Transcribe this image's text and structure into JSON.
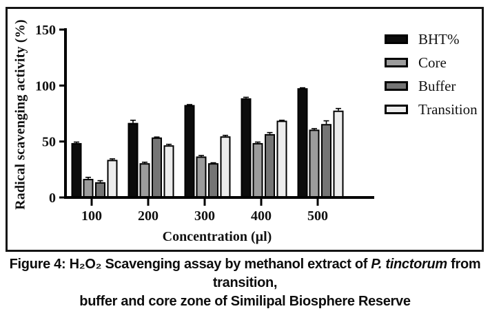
{
  "figure": {
    "caption": {
      "line1_pre": "Figure 4: H₂O₂ Scavenging assay by methanol extract of ",
      "species": "P. tinctorum",
      "line1_post": " from transition,",
      "line2": "buffer and core zone of Similipal Biosphere Reserve"
    }
  },
  "chart_data": {
    "type": "bar",
    "title": "",
    "xlabel": "Concentration (µl)",
    "ylabel": "Radical scavenging activity (%)",
    "ylim": [
      0,
      150
    ],
    "yticks": [
      0,
      50,
      100,
      150
    ],
    "grid": false,
    "legend_position": "right",
    "error_bars": "upper",
    "categories": [
      "100",
      "200",
      "300",
      "400",
      "500"
    ],
    "series": [
      {
        "name": "BHT%",
        "color": "#0c0c0c",
        "values": [
          48,
          66,
          82,
          88,
          97
        ],
        "errors": [
          1.5,
          3,
          1,
          1.5,
          1
        ]
      },
      {
        "name": "Core",
        "color": "#9c9c9c",
        "values": [
          16,
          30,
          36,
          48,
          60
        ],
        "errors": [
          2,
          1.5,
          1.5,
          1.5,
          1.5
        ]
      },
      {
        "name": "Buffer",
        "color": "#757575",
        "values": [
          13,
          53,
          30,
          56,
          65
        ],
        "errors": [
          2,
          1,
          1,
          2,
          3.5
        ]
      },
      {
        "name": "Transition",
        "color": "#ececec",
        "values": [
          33,
          46,
          54,
          68,
          77
        ],
        "errors": [
          1.5,
          1.5,
          1.5,
          1,
          2.5
        ]
      }
    ]
  }
}
